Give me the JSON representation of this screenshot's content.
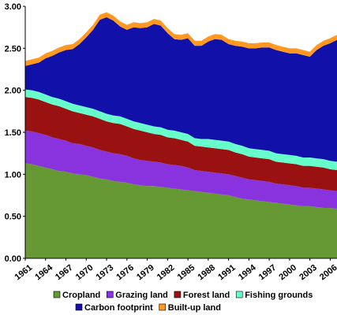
{
  "chart_data": {
    "type": "area",
    "stacked": true,
    "x": [
      1961,
      1962,
      1963,
      1964,
      1965,
      1966,
      1967,
      1968,
      1969,
      1970,
      1971,
      1972,
      1973,
      1974,
      1975,
      1976,
      1977,
      1978,
      1979,
      1980,
      1981,
      1982,
      1983,
      1984,
      1985,
      1986,
      1987,
      1988,
      1989,
      1990,
      1991,
      1992,
      1993,
      1994,
      1995,
      1996,
      1997,
      1998,
      1999,
      2000,
      2001,
      2002,
      2003,
      2004,
      2005,
      2006,
      2007
    ],
    "x_tick_labels": [
      "1961",
      "1964",
      "1967",
      "1970",
      "1973",
      "1976",
      "1979",
      "1982",
      "1985",
      "1988",
      "1991",
      "1994",
      "1997",
      "2000",
      "2003",
      "2006"
    ],
    "y_tick_labels": [
      "0.00",
      "0.50",
      "1.00",
      "1.50",
      "2.00",
      "2.50",
      "3.00"
    ],
    "ylim": [
      0,
      3.0
    ],
    "legend_position": "bottom",
    "series": [
      {
        "name": "Cropland",
        "color": "#669933",
        "values": [
          1.13,
          1.12,
          1.1,
          1.08,
          1.06,
          1.04,
          1.03,
          1.01,
          1.0,
          0.99,
          0.97,
          0.95,
          0.94,
          0.92,
          0.91,
          0.9,
          0.88,
          0.87,
          0.86,
          0.86,
          0.85,
          0.84,
          0.83,
          0.82,
          0.81,
          0.8,
          0.79,
          0.78,
          0.77,
          0.76,
          0.75,
          0.73,
          0.71,
          0.7,
          0.69,
          0.68,
          0.67,
          0.66,
          0.65,
          0.64,
          0.63,
          0.62,
          0.62,
          0.61,
          0.6,
          0.6,
          0.59
        ]
      },
      {
        "name": "Grazing land",
        "color": "#8833dd",
        "values": [
          0.39,
          0.39,
          0.39,
          0.39,
          0.38,
          0.38,
          0.37,
          0.36,
          0.36,
          0.35,
          0.35,
          0.34,
          0.33,
          0.33,
          0.33,
          0.32,
          0.31,
          0.3,
          0.3,
          0.29,
          0.29,
          0.28,
          0.28,
          0.28,
          0.27,
          0.25,
          0.25,
          0.25,
          0.25,
          0.25,
          0.25,
          0.25,
          0.25,
          0.24,
          0.24,
          0.24,
          0.24,
          0.23,
          0.23,
          0.23,
          0.23,
          0.22,
          0.22,
          0.22,
          0.22,
          0.21,
          0.21
        ]
      },
      {
        "name": "Forest land",
        "color": "#991111",
        "values": [
          0.4,
          0.4,
          0.4,
          0.39,
          0.39,
          0.39,
          0.38,
          0.38,
          0.37,
          0.37,
          0.37,
          0.37,
          0.36,
          0.36,
          0.36,
          0.35,
          0.35,
          0.35,
          0.34,
          0.33,
          0.33,
          0.32,
          0.32,
          0.31,
          0.31,
          0.29,
          0.29,
          0.29,
          0.29,
          0.29,
          0.29,
          0.28,
          0.28,
          0.27,
          0.27,
          0.27,
          0.27,
          0.26,
          0.26,
          0.26,
          0.26,
          0.26,
          0.26,
          0.26,
          0.26,
          0.25,
          0.25
        ]
      },
      {
        "name": "Fishing grounds",
        "color": "#66ffcc",
        "values": [
          0.09,
          0.09,
          0.09,
          0.09,
          0.09,
          0.09,
          0.09,
          0.09,
          0.09,
          0.09,
          0.09,
          0.09,
          0.09,
          0.09,
          0.09,
          0.09,
          0.09,
          0.09,
          0.09,
          0.09,
          0.09,
          0.09,
          0.09,
          0.09,
          0.09,
          0.09,
          0.09,
          0.1,
          0.1,
          0.1,
          0.1,
          0.1,
          0.1,
          0.1,
          0.1,
          0.1,
          0.1,
          0.1,
          0.1,
          0.1,
          0.1,
          0.1,
          0.1,
          0.1,
          0.1,
          0.1,
          0.1
        ]
      },
      {
        "name": "Carbon footprint",
        "color": "#1111aa",
        "values": [
          0.28,
          0.31,
          0.35,
          0.43,
          0.49,
          0.55,
          0.61,
          0.65,
          0.73,
          0.83,
          0.94,
          1.09,
          1.15,
          1.13,
          1.07,
          1.06,
          1.12,
          1.13,
          1.16,
          1.22,
          1.21,
          1.15,
          1.09,
          1.1,
          1.14,
          1.1,
          1.11,
          1.16,
          1.2,
          1.2,
          1.16,
          1.17,
          1.18,
          1.19,
          1.2,
          1.22,
          1.23,
          1.23,
          1.22,
          1.21,
          1.22,
          1.22,
          1.2,
          1.29,
          1.35,
          1.4,
          1.45
        ]
      },
      {
        "name": "Built-up land",
        "color": "#ff9922",
        "values": [
          0.06,
          0.06,
          0.06,
          0.06,
          0.06,
          0.06,
          0.06,
          0.06,
          0.06,
          0.06,
          0.06,
          0.06,
          0.06,
          0.06,
          0.06,
          0.06,
          0.06,
          0.06,
          0.06,
          0.06,
          0.06,
          0.06,
          0.06,
          0.06,
          0.06,
          0.06,
          0.06,
          0.06,
          0.06,
          0.06,
          0.06,
          0.06,
          0.06,
          0.06,
          0.06,
          0.06,
          0.06,
          0.06,
          0.06,
          0.06,
          0.06,
          0.06,
          0.06,
          0.06,
          0.06,
          0.06,
          0.06
        ]
      }
    ],
    "legend_rows": [
      [
        "Cropland",
        "Grazing land",
        "Forest land",
        "Fishing grounds"
      ],
      [
        "Carbon footprint",
        "Built-up land"
      ]
    ]
  }
}
